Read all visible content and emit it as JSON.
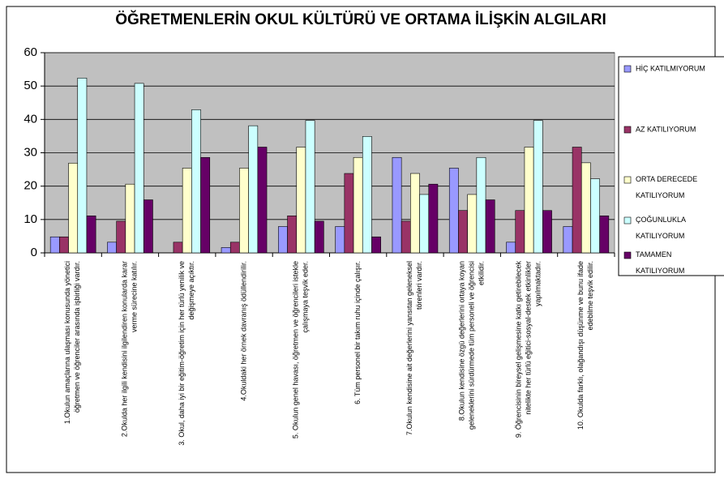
{
  "chart_data": {
    "type": "bar",
    "title": "ÖĞRETMENLERİN OKUL KÜLTÜRÜ VE ORTAMA İLİŞKİN ALGILARI",
    "categories": [
      "1.Okulun amaçlarına ulaşması konusunda yönetici\nöğretmen ve öğrenciler arasında işbirliği vardır.",
      "2.Okulda her ilgili kendisini ilgilendiren konularda karar\nverme sürecine katılır.",
      "3. Okul, daha iyi bir eğitim-öğretim için her türlü yenilik ve\ndeğişmeye açıktır.",
      "4.Okuldaki her örnek davranış ödüllendirilir.",
      "5. Okulun genel havası, öğretmen ve öğrencileri istekle\nçalışmaya teşvik eder.",
      "6. Tüm personel bir takım ruhu içinde çalışır.",
      "7.Okulun kendisine ait değerlerini yansıtan geleneksel\ntörenleri vardır.",
      "8.Okulun kendisine özgü değerlerini ortaya koyan\ngeleneklerini sürdürmede tüm personeli ve öğrencisi\netkilidir.",
      "9. Öğrencisinin bireysel gelişmesine katkı getirebilecek\nnitelikte her türlü eğitici-sosyal-destek etkinlikler\nyapılmaktadır.",
      "10. Okulda farklı, olağandışı düşünme ve bunu ifade\nedebilme teşvik edilir."
    ],
    "series": [
      {
        "name": "HİÇ KATILMIYORUM",
        "color": "#9999ff",
        "values": [
          4.8,
          3.2,
          0,
          1.6,
          7.9,
          7.9,
          28.6,
          25.4,
          3.2,
          7.9
        ]
      },
      {
        "name": "AZ KATILIYORUM",
        "color": "#993366",
        "values": [
          4.8,
          9.5,
          3.2,
          3.2,
          11.1,
          23.8,
          9.5,
          12.7,
          12.7,
          31.7
        ]
      },
      {
        "name": "ORTA DERECEDE\nKATILIYORUM",
        "color": "#ffffcc",
        "values": [
          26.9,
          20.6,
          25.4,
          25.4,
          31.7,
          28.6,
          23.8,
          17.5,
          31.7,
          27.0
        ]
      },
      {
        "name": "ÇOĞUNLUKLA\nKATILIYORUM",
        "color": "#ccffff",
        "values": [
          52.4,
          50.8,
          42.9,
          38.1,
          39.7,
          34.9,
          17.5,
          28.6,
          39.7,
          22.2
        ]
      },
      {
        "name": "TAMAMEN\nKATILIYORUM",
        "color": "#660066",
        "values": [
          11.1,
          15.9,
          28.6,
          31.7,
          9.5,
          4.8,
          20.6,
          15.9,
          12.7,
          11.1
        ]
      }
    ],
    "ylim": [
      0,
      60
    ],
    "yticks": [
      0,
      10,
      20,
      30,
      40,
      50,
      60
    ],
    "grid": true,
    "legend": "right"
  }
}
